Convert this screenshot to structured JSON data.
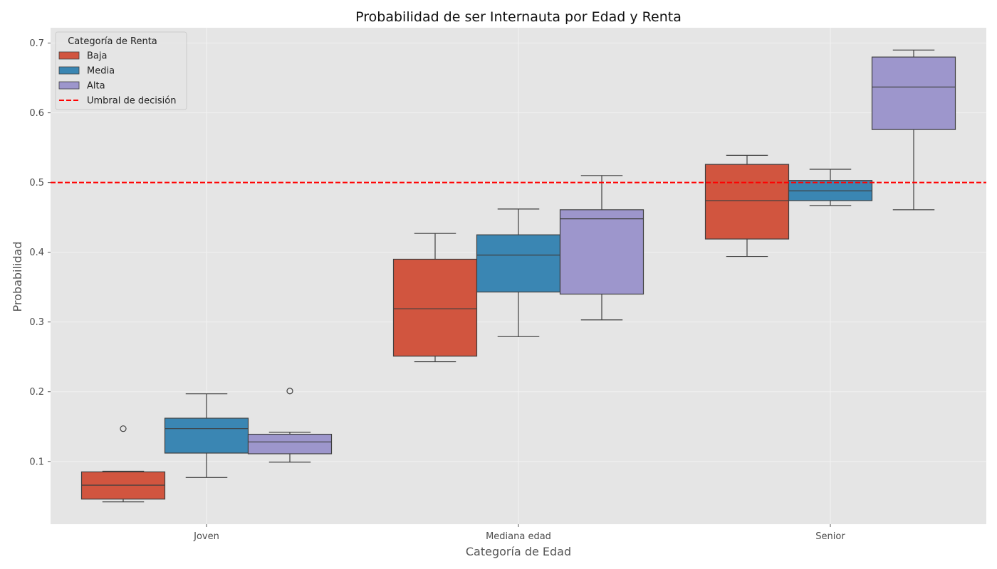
{
  "chart_data": {
    "type": "box",
    "title": "Probabilidad de ser Internauta por Edad y Renta",
    "xlabel": "Categoría de Edad",
    "ylabel": "Probabilidad",
    "ylim": [
      0.01,
      0.722
    ],
    "yticks": [
      0.1,
      0.2,
      0.3,
      0.4,
      0.5,
      0.6,
      0.7
    ],
    "yticklabels": [
      "0.1",
      "0.2",
      "0.3",
      "0.4",
      "0.5",
      "0.6",
      "0.7"
    ],
    "grid": true,
    "categories": [
      "Joven",
      "Mediana edad",
      "Senior"
    ],
    "series": [
      {
        "name": "Baja",
        "color": "#d1553f",
        "boxes": [
          {
            "whisker_low": 0.042,
            "q1": 0.046,
            "median": 0.066,
            "q3": 0.085,
            "whisker_high": 0.086,
            "outliers": [
              0.147
            ]
          },
          {
            "whisker_low": 0.243,
            "q1": 0.251,
            "median": 0.319,
            "q3": 0.39,
            "whisker_high": 0.427,
            "outliers": []
          },
          {
            "whisker_low": 0.394,
            "q1": 0.419,
            "median": 0.474,
            "q3": 0.526,
            "whisker_high": 0.539,
            "outliers": []
          }
        ]
      },
      {
        "name": "Media",
        "color": "#3a86b3",
        "boxes": [
          {
            "whisker_low": 0.077,
            "q1": 0.112,
            "median": 0.147,
            "q3": 0.162,
            "whisker_high": 0.197,
            "outliers": []
          },
          {
            "whisker_low": 0.279,
            "q1": 0.343,
            "median": 0.396,
            "q3": 0.425,
            "whisker_high": 0.462,
            "outliers": []
          },
          {
            "whisker_low": 0.467,
            "q1": 0.474,
            "median": 0.488,
            "q3": 0.503,
            "whisker_high": 0.519,
            "outliers": []
          }
        ]
      },
      {
        "name": "Alta",
        "color": "#9d96cc",
        "boxes": [
          {
            "whisker_low": 0.099,
            "q1": 0.111,
            "median": 0.128,
            "q3": 0.139,
            "whisker_high": 0.142,
            "outliers": [
              0.201
            ]
          },
          {
            "whisker_low": 0.303,
            "q1": 0.34,
            "median": 0.448,
            "q3": 0.461,
            "whisker_high": 0.51,
            "outliers": []
          },
          {
            "whisker_low": 0.461,
            "q1": 0.576,
            "median": 0.637,
            "q3": 0.68,
            "whisker_high": 0.69,
            "outliers": []
          }
        ]
      }
    ],
    "threshold": {
      "value": 0.5,
      "label": "Umbral de decisión",
      "color": "#ff0000"
    },
    "legend": {
      "title": "Categoría de Renta",
      "position": "top-left",
      "items": [
        "Baja",
        "Media",
        "Alta",
        "Umbral de decisión"
      ]
    }
  }
}
